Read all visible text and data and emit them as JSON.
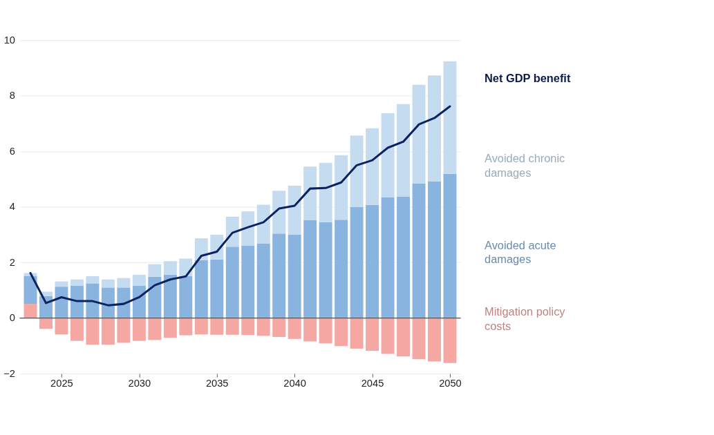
{
  "chart_data": {
    "type": "bar",
    "stacked": true,
    "x": [
      2023,
      2024,
      2025,
      2026,
      2027,
      2028,
      2029,
      2030,
      2031,
      2032,
      2033,
      2034,
      2035,
      2036,
      2037,
      2038,
      2039,
      2040,
      2041,
      2042,
      2043,
      2044,
      2045,
      2046,
      2047,
      2048,
      2049,
      2050
    ],
    "series": [
      {
        "name": "Mitigation policy costs",
        "color": "#f4a7a3",
        "values": [
          0.51,
          -0.39,
          -0.59,
          -0.82,
          -0.96,
          -0.96,
          -0.89,
          -0.82,
          -0.79,
          -0.71,
          -0.62,
          -0.59,
          -0.6,
          -0.6,
          -0.61,
          -0.64,
          -0.68,
          -0.75,
          -0.84,
          -0.91,
          -1.01,
          -1.1,
          -1.18,
          -1.29,
          -1.38,
          -1.48,
          -1.56,
          -1.62
        ]
      },
      {
        "name": "Avoided acute damages",
        "color": "#8ab4e0",
        "values": [
          1.01,
          0.79,
          1.13,
          1.16,
          1.25,
          1.1,
          1.1,
          1.16,
          1.49,
          1.56,
          1.51,
          2.08,
          2.11,
          2.57,
          2.61,
          2.69,
          3.04,
          3.0,
          3.52,
          3.45,
          3.54,
          3.99,
          4.07,
          4.34,
          4.38,
          4.84,
          4.91,
          5.19
        ]
      },
      {
        "name": "Avoided chronic damages",
        "color": "#c5dcf0",
        "values": [
          0.1,
          0.16,
          0.19,
          0.23,
          0.26,
          0.29,
          0.34,
          0.4,
          0.45,
          0.49,
          0.63,
          0.79,
          0.89,
          1.08,
          1.23,
          1.39,
          1.54,
          1.76,
          1.93,
          2.14,
          2.32,
          2.58,
          2.76,
          3.03,
          3.32,
          3.56,
          3.82,
          4.05
        ]
      },
      {
        "name": "Net GDP benefit",
        "type": "line",
        "color": "#0d2260",
        "values": [
          1.62,
          0.54,
          0.75,
          0.61,
          0.61,
          0.46,
          0.51,
          0.75,
          1.18,
          1.39,
          1.5,
          2.24,
          2.39,
          3.07,
          3.27,
          3.45,
          3.94,
          4.04,
          4.66,
          4.68,
          4.88,
          5.5,
          5.68,
          6.13,
          6.35,
          6.97,
          7.2,
          7.62
        ]
      }
    ],
    "xlim": [
      2022.5,
      2050.5
    ],
    "xticks": [
      2025,
      2030,
      2035,
      2040,
      2045,
      2050
    ],
    "ylim": [
      -2,
      10
    ],
    "yticks": [
      -2,
      0,
      2,
      4,
      6,
      8,
      10
    ],
    "grid": "y",
    "legend": "right",
    "ref_lines": [
      {
        "axis": "y",
        "value": 0,
        "color": "#555555"
      }
    ]
  }
}
